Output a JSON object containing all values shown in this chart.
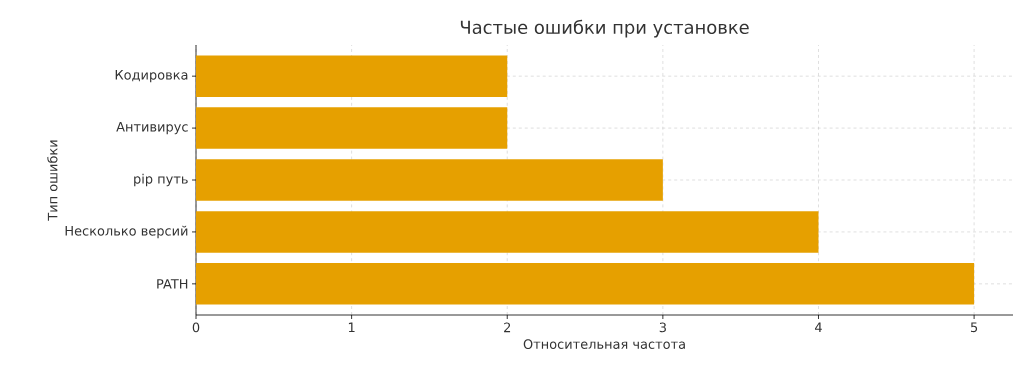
{
  "chart_data": {
    "type": "bar",
    "orientation": "horizontal",
    "title": "Частые ошибки при установке",
    "xlabel": "Относительная частота",
    "ylabel": "Тип ошибки",
    "categories": [
      "Кодировка",
      "Антивирус",
      "pip путь",
      "Несколько версий",
      "PATH"
    ],
    "values": [
      2,
      2,
      3,
      4,
      5
    ],
    "color": "#e6a000",
    "xlim": [
      0,
      5.25
    ],
    "xticks": [
      0,
      1,
      2,
      3,
      4,
      5
    ],
    "grid": true
  }
}
